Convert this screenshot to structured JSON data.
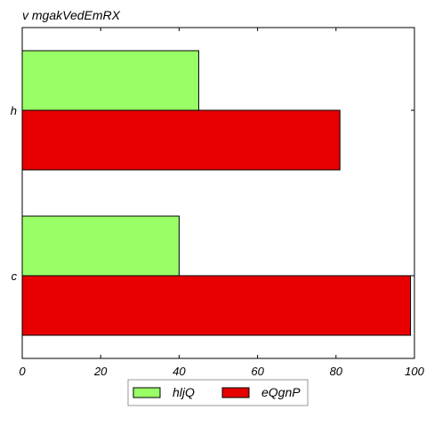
{
  "chart_data": {
    "type": "bar",
    "orientation": "horizontal",
    "title": "v mgakVedEmRX",
    "xlabel": "",
    "ylabel": "",
    "categories": [
      "h",
      "c"
    ],
    "series": [
      {
        "name": "hljQ",
        "color": "#99ff66",
        "values": [
          45,
          40
        ]
      },
      {
        "name": "eQgnP",
        "color": "#e60000",
        "values": [
          81,
          99
        ]
      }
    ],
    "xlim": [
      0,
      100
    ],
    "xticks": [
      "0",
      "20",
      "40",
      "60",
      "80",
      "100"
    ],
    "grid": false,
    "legend_position": "bottom-center"
  }
}
